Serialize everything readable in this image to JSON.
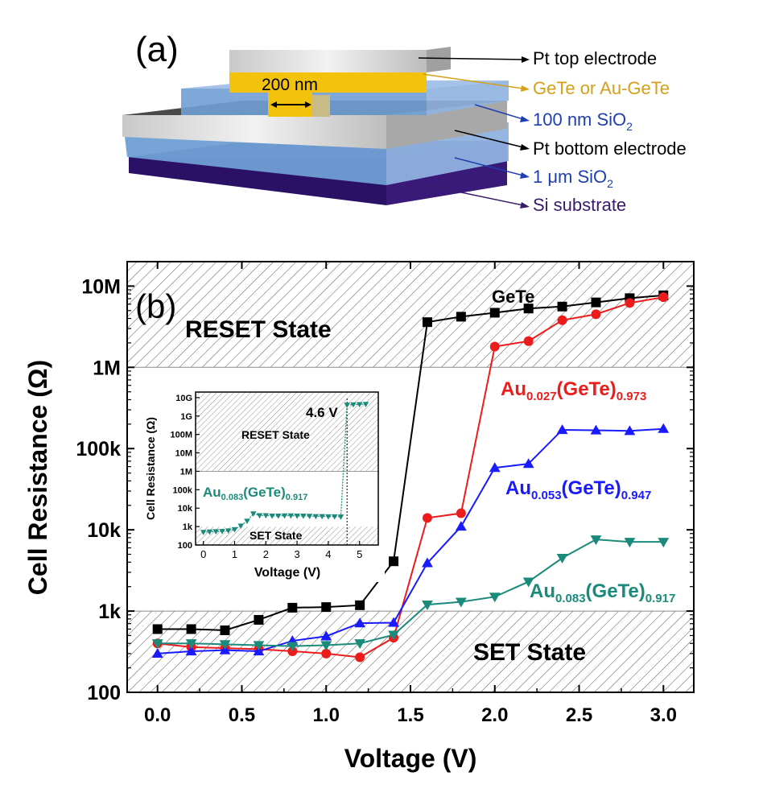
{
  "panel_a": {
    "label": "(a)",
    "dimension_label": "200 nm",
    "layers": [
      {
        "name": "Pt top electrode",
        "color": "#000000"
      },
      {
        "name": "GeTe or Au-GeTe",
        "color": "#d4a017"
      },
      {
        "name": "100 nm SiO",
        "sub": "2",
        "color": "#1f3fb0"
      },
      {
        "name": "Pt bottom electrode",
        "color": "#000000"
      },
      {
        "name": "1 μm SiO",
        "sub": "2",
        "color": "#1f3fb0"
      },
      {
        "name": "Si substrate",
        "color": "#3a1a6a"
      }
    ]
  },
  "chart_data": [
    {
      "panel": "(b)",
      "type": "line",
      "xlabel": "Voltage (V)",
      "ylabel": "Cell Resistance (Ω)",
      "yscale": "log",
      "xlim": [
        -0.18,
        3.18
      ],
      "ylim": [
        100,
        20000000
      ],
      "xticks": [
        "0.0",
        "0.5",
        "1.0",
        "1.5",
        "2.0",
        "2.5",
        "3.0"
      ],
      "yticks": [
        {
          "v": 100,
          "t": "100"
        },
        {
          "v": 1000,
          "t": "1k"
        },
        {
          "v": 10000,
          "t": "10k"
        },
        {
          "v": 100000,
          "t": "100k"
        },
        {
          "v": 1000000,
          "t": "1M"
        },
        {
          "v": 10000000,
          "t": "10M"
        }
      ],
      "regions": [
        {
          "label": "RESET State",
          "from": 1000000,
          "to": 20000000
        },
        {
          "label": "SET State",
          "from": 100,
          "to": 1000
        }
      ],
      "x": [
        0.0,
        0.2,
        0.4,
        0.6,
        0.8,
        1.0,
        1.2,
        1.4,
        1.6,
        1.8,
        2.0,
        2.2,
        2.4,
        2.6,
        2.8,
        3.0
      ],
      "series": [
        {
          "name": "GeTe",
          "sub1": "",
          "sub2": "",
          "color": "#000000",
          "marker": "square",
          "values": [
            600,
            600,
            580,
            780,
            1100,
            1120,
            1180,
            4100,
            3600000,
            4200000,
            4700000,
            5300000,
            5600000,
            6300000,
            7100000,
            7700000
          ]
        },
        {
          "name": "Au",
          "sub1": "0.027",
          "mid": "(GeTe)",
          "sub2": "0.973",
          "color": "#ed1c1c",
          "marker": "circle",
          "values": [
            400,
            360,
            350,
            340,
            320,
            300,
            270,
            470,
            14000,
            16000,
            1800000,
            2100000,
            3800000,
            4500000,
            6200000,
            7300000
          ]
        },
        {
          "name": "Au",
          "sub1": "0.053",
          "mid": "(GeTe)",
          "sub2": "0.947",
          "color": "#1a1aff",
          "marker": "triangle",
          "values": [
            300,
            320,
            330,
            320,
            430,
            490,
            710,
            720,
            3900,
            11000,
            58000,
            65000,
            170000,
            168000,
            165000,
            175000
          ]
        },
        {
          "name": "Au",
          "sub1": "0.083",
          "mid": "(GeTe)",
          "sub2": "0.917",
          "color": "#1a8a7a",
          "marker": "triangle-down",
          "values": [
            400,
            400,
            390,
            380,
            370,
            380,
            400,
            510,
            1200,
            1300,
            1500,
            2300,
            4500,
            7600,
            7100,
            7100
          ]
        }
      ]
    },
    {
      "panel": "inset",
      "type": "line",
      "xlabel": "Voltage (V)",
      "ylabel": "Cell Resistance (Ω)",
      "yscale": "log",
      "xlim": [
        -0.25,
        5.6
      ],
      "ylim": [
        100,
        20000000000
      ],
      "xticks": [
        "0",
        "1",
        "2",
        "3",
        "4",
        "5"
      ],
      "yticks": [
        {
          "v": 100,
          "t": "100"
        },
        {
          "v": 1000,
          "t": "1k"
        },
        {
          "v": 10000,
          "t": "10k"
        },
        {
          "v": 100000,
          "t": "100k"
        },
        {
          "v": 1000000,
          "t": "1M"
        },
        {
          "v": 10000000,
          "t": "10M"
        },
        {
          "v": 100000000,
          "t": "100M"
        },
        {
          "v": 1000000000,
          "t": "1G"
        },
        {
          "v": 10000000000,
          "t": "10G"
        }
      ],
      "regions": [
        {
          "label": "RESET State",
          "from": 1000000,
          "to": 20000000000
        },
        {
          "label": "SET State",
          "from": 100,
          "to": 1000
        }
      ],
      "annotation": "4.6 V",
      "annotation_x": 4.6,
      "series_label": {
        "name": "Au",
        "sub1": "0.083",
        "mid": "(GeTe)",
        "sub2": "0.917"
      },
      "color": "#1a8a7a",
      "x": [
        0.0,
        0.2,
        0.4,
        0.6,
        0.8,
        1.0,
        1.2,
        1.4,
        1.6,
        1.8,
        2.0,
        2.2,
        2.4,
        2.6,
        2.8,
        3.0,
        3.2,
        3.4,
        3.6,
        3.8,
        4.0,
        4.2,
        4.4,
        4.6,
        4.8,
        5.0,
        5.2
      ],
      "values": [
        500,
        520,
        540,
        560,
        600,
        700,
        1100,
        2000,
        5000,
        4000,
        4000,
        3800,
        3800,
        3900,
        3900,
        3800,
        3800,
        3700,
        3600,
        3600,
        3500,
        3500,
        3400,
        4000000000,
        4200000000,
        4300000000,
        4400000000
      ]
    }
  ]
}
